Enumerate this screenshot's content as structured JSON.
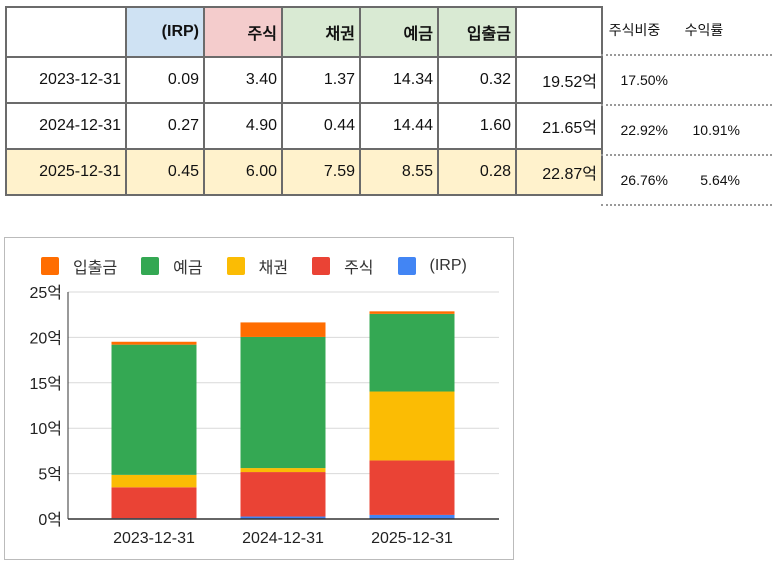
{
  "table": {
    "headers": [
      "",
      "(IRP)",
      "주식",
      "채권",
      "예금",
      "입출금",
      ""
    ],
    "rows": [
      {
        "date": "2023-12-31",
        "irp": "0.09",
        "stock": "3.40",
        "bond": "1.37",
        "deposit": "14.34",
        "cash": "0.32",
        "total": "19.52억",
        "stock_ratio": "17.50%",
        "return": ""
      },
      {
        "date": "2024-12-31",
        "irp": "0.27",
        "stock": "4.90",
        "bond": "0.44",
        "deposit": "14.44",
        "cash": "1.60",
        "total": "21.65억",
        "stock_ratio": "22.92%",
        "return": "10.91%"
      },
      {
        "date": "2025-12-31",
        "irp": "0.45",
        "stock": "6.00",
        "bond": "7.59",
        "deposit": "8.55",
        "cash": "0.28",
        "total": "22.87억",
        "stock_ratio": "26.76%",
        "return": "5.64%"
      }
    ],
    "side_headers": [
      "주식비중",
      "수익률"
    ]
  },
  "chart_data": {
    "type": "bar",
    "stacked": true,
    "categories": [
      "2023-12-31",
      "2024-12-31",
      "2025-12-31"
    ],
    "series": [
      {
        "name": "(IRP)",
        "color": "#4285f4",
        "values": [
          0.09,
          0.27,
          0.45
        ]
      },
      {
        "name": "주식",
        "color": "#ea4335",
        "values": [
          3.4,
          4.9,
          6.0
        ]
      },
      {
        "name": "채권",
        "color": "#fbbc04",
        "values": [
          1.37,
          0.44,
          7.59
        ]
      },
      {
        "name": "예금",
        "color": "#34a853",
        "values": [
          14.34,
          14.44,
          8.55
        ]
      },
      {
        "name": "입출금",
        "color": "#ff6d01",
        "values": [
          0.32,
          1.6,
          0.28
        ]
      }
    ],
    "legend_order": [
      "입출금",
      "예금",
      "채권",
      "주식",
      "(IRP)"
    ],
    "legend_position": "top",
    "ylim": [
      0,
      25
    ],
    "yticks": [
      "0억",
      "5억",
      "10억",
      "15억",
      "20억",
      "25억"
    ],
    "grid": true
  }
}
